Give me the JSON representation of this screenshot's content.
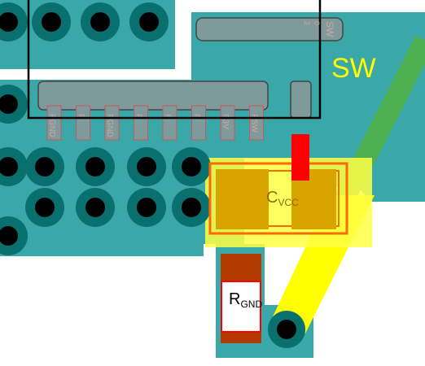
{
  "labels": {
    "sw": "SW",
    "cvcc_main": "C",
    "cvcc_sub": "VCC",
    "rgnd_main": "R",
    "rgnd_sub": "GND",
    "connector_pins": [
      "P1",
      "P2",
      "P3",
      "P4",
      "P5",
      "P6",
      "P7",
      "P8"
    ],
    "connector_pin_labels": [
      "P",
      "P",
      "P",
      "P",
      "P",
      "P",
      "P",
      "P"
    ],
    "connector_pin_suffix": [
      "GND",
      "",
      "GND",
      "",
      "",
      "",
      "3V",
      "SW"
    ],
    "top_right_part_text": "SW",
    "top_right_part_pins": [
      "2",
      "0"
    ],
    "right_pin_text": "S"
  },
  "colors": {
    "board": "#3aa8a8",
    "pad_ring": "#0a6f6f",
    "pad_hole": "#000000",
    "copper_pad": "#d9a300",
    "silk_red": "#ff0000",
    "outline_orange": "#ff6a00",
    "trace_yellow": "#ffff00",
    "trace_green": "#4caf50",
    "resistor_pad": "#b23a00",
    "connector_body": "#7f9a9a"
  }
}
